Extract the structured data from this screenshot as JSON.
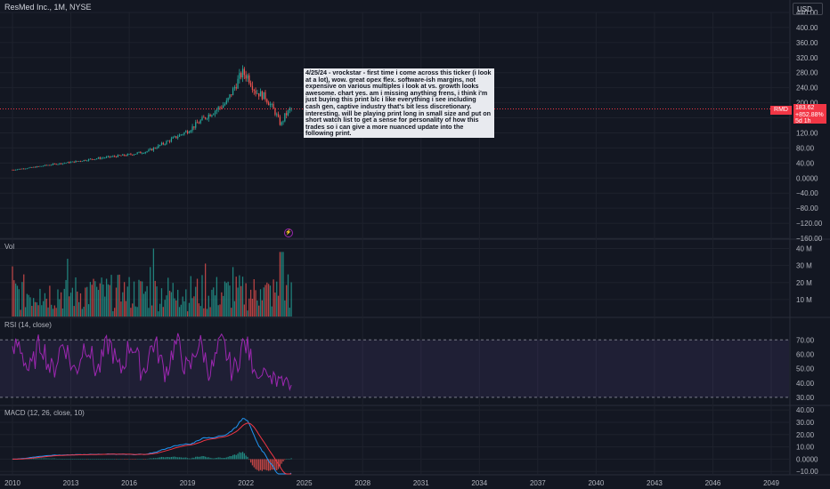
{
  "header": {
    "symbol_line": "ResMed Inc., 1M, NYSE",
    "currency": "USD"
  },
  "colors": {
    "bg": "#131722",
    "up": "#26a69a",
    "down": "#ef5350",
    "grid": "#1e222d",
    "separator": "#2a2e39",
    "axis_text": "#b2b5be",
    "rsi_line": "#9c27b0",
    "macd_line": "#2196f3",
    "signal_line": "#f23645"
  },
  "price_pane": {
    "ticks": [
      "440.00",
      "400.00",
      "360.00",
      "320.00",
      "280.00",
      "240.00",
      "200.00",
      "160.00",
      "120.00",
      "80.00",
      "40.00",
      "0.0000",
      "−40.00",
      "−80.00",
      "−120.00",
      "−160.00"
    ],
    "tick_values": [
      440,
      400,
      360,
      320,
      280,
      240,
      200,
      160,
      120,
      80,
      40,
      0,
      -40,
      -80,
      -120,
      -160
    ],
    "symbol_tag": "RMD",
    "last_price": "183.62",
    "change_pct": "+852.88%",
    "countdown": "5d 1h",
    "event_icon": "lightning-icon"
  },
  "annotation": {
    "text": "4/25/24 - vrockstar - first time i come across this ticker (i look at a lot), wow. great opex flex. software-ish margins, not expensive on various multiples i look at vs. growth looks awesome. chart yes. am i missing anything frens, i think i'm just buying this print b/c i like everything i see including cash gen, captive industry that's bit less discretionary. interesting. will be playing print long in small size and put on short watch list to get a sense for personality of how this trades so i can give a more nuanced update into the following print."
  },
  "volume_pane": {
    "label": "Vol",
    "ticks": [
      "40 M",
      "30 M",
      "20 M",
      "10 M"
    ],
    "tick_values": [
      40,
      30,
      20,
      10
    ]
  },
  "rsi_pane": {
    "label": "RSI (14, close)",
    "ticks": [
      "70.00",
      "60.00",
      "50.00",
      "40.00",
      "30.00"
    ],
    "tick_values": [
      70,
      60,
      50,
      40,
      30
    ],
    "overbought": 70,
    "oversold": 30
  },
  "macd_pane": {
    "label": "MACD (12, 26, close, 10)",
    "ticks": [
      "40.00",
      "30.00",
      "20.00",
      "10.00",
      "0.0000",
      "−10.00"
    ],
    "tick_values": [
      40,
      30,
      20,
      10,
      0,
      -10
    ]
  },
  "time_axis": {
    "labels": [
      "2010",
      "2013",
      "2016",
      "2019",
      "2022",
      "2025",
      "2028",
      "2031",
      "2034",
      "2037",
      "2040",
      "2043",
      "2046",
      "2049"
    ],
    "years": [
      2010,
      2013,
      2016,
      2019,
      2022,
      2025,
      2028,
      2031,
      2034,
      2037,
      2040,
      2043,
      2046,
      2049
    ]
  },
  "chart_data": {
    "type": "candlestick",
    "interval": "1M",
    "series_years": [
      2010,
      2024.3
    ],
    "price_anchors": [
      [
        2010,
        22
      ],
      [
        2011,
        28
      ],
      [
        2012,
        36
      ],
      [
        2013,
        42
      ],
      [
        2014,
        50
      ],
      [
        2015,
        56
      ],
      [
        2016,
        62
      ],
      [
        2017,
        72
      ],
      [
        2018,
        98
      ],
      [
        2019,
        125
      ],
      [
        2020,
        165
      ],
      [
        2021,
        200
      ],
      [
        2021.8,
        280
      ],
      [
        2022.1,
        270
      ],
      [
        2022.5,
        230
      ],
      [
        2023.0,
        215
      ],
      [
        2023.5,
        175
      ],
      [
        2023.8,
        140
      ],
      [
        2024.0,
        165
      ],
      [
        2024.3,
        183.62
      ]
    ],
    "volume_range_m": [
      3,
      40
    ],
    "rsi_range": [
      35,
      85
    ],
    "macd_range": [
      -10,
      35
    ],
    "price_ylim": [
      -160,
      440
    ],
    "volume_ylim": [
      0,
      45
    ],
    "rsi_ylim": [
      25,
      85
    ],
    "macd_ylim": [
      -12,
      43
    ]
  }
}
